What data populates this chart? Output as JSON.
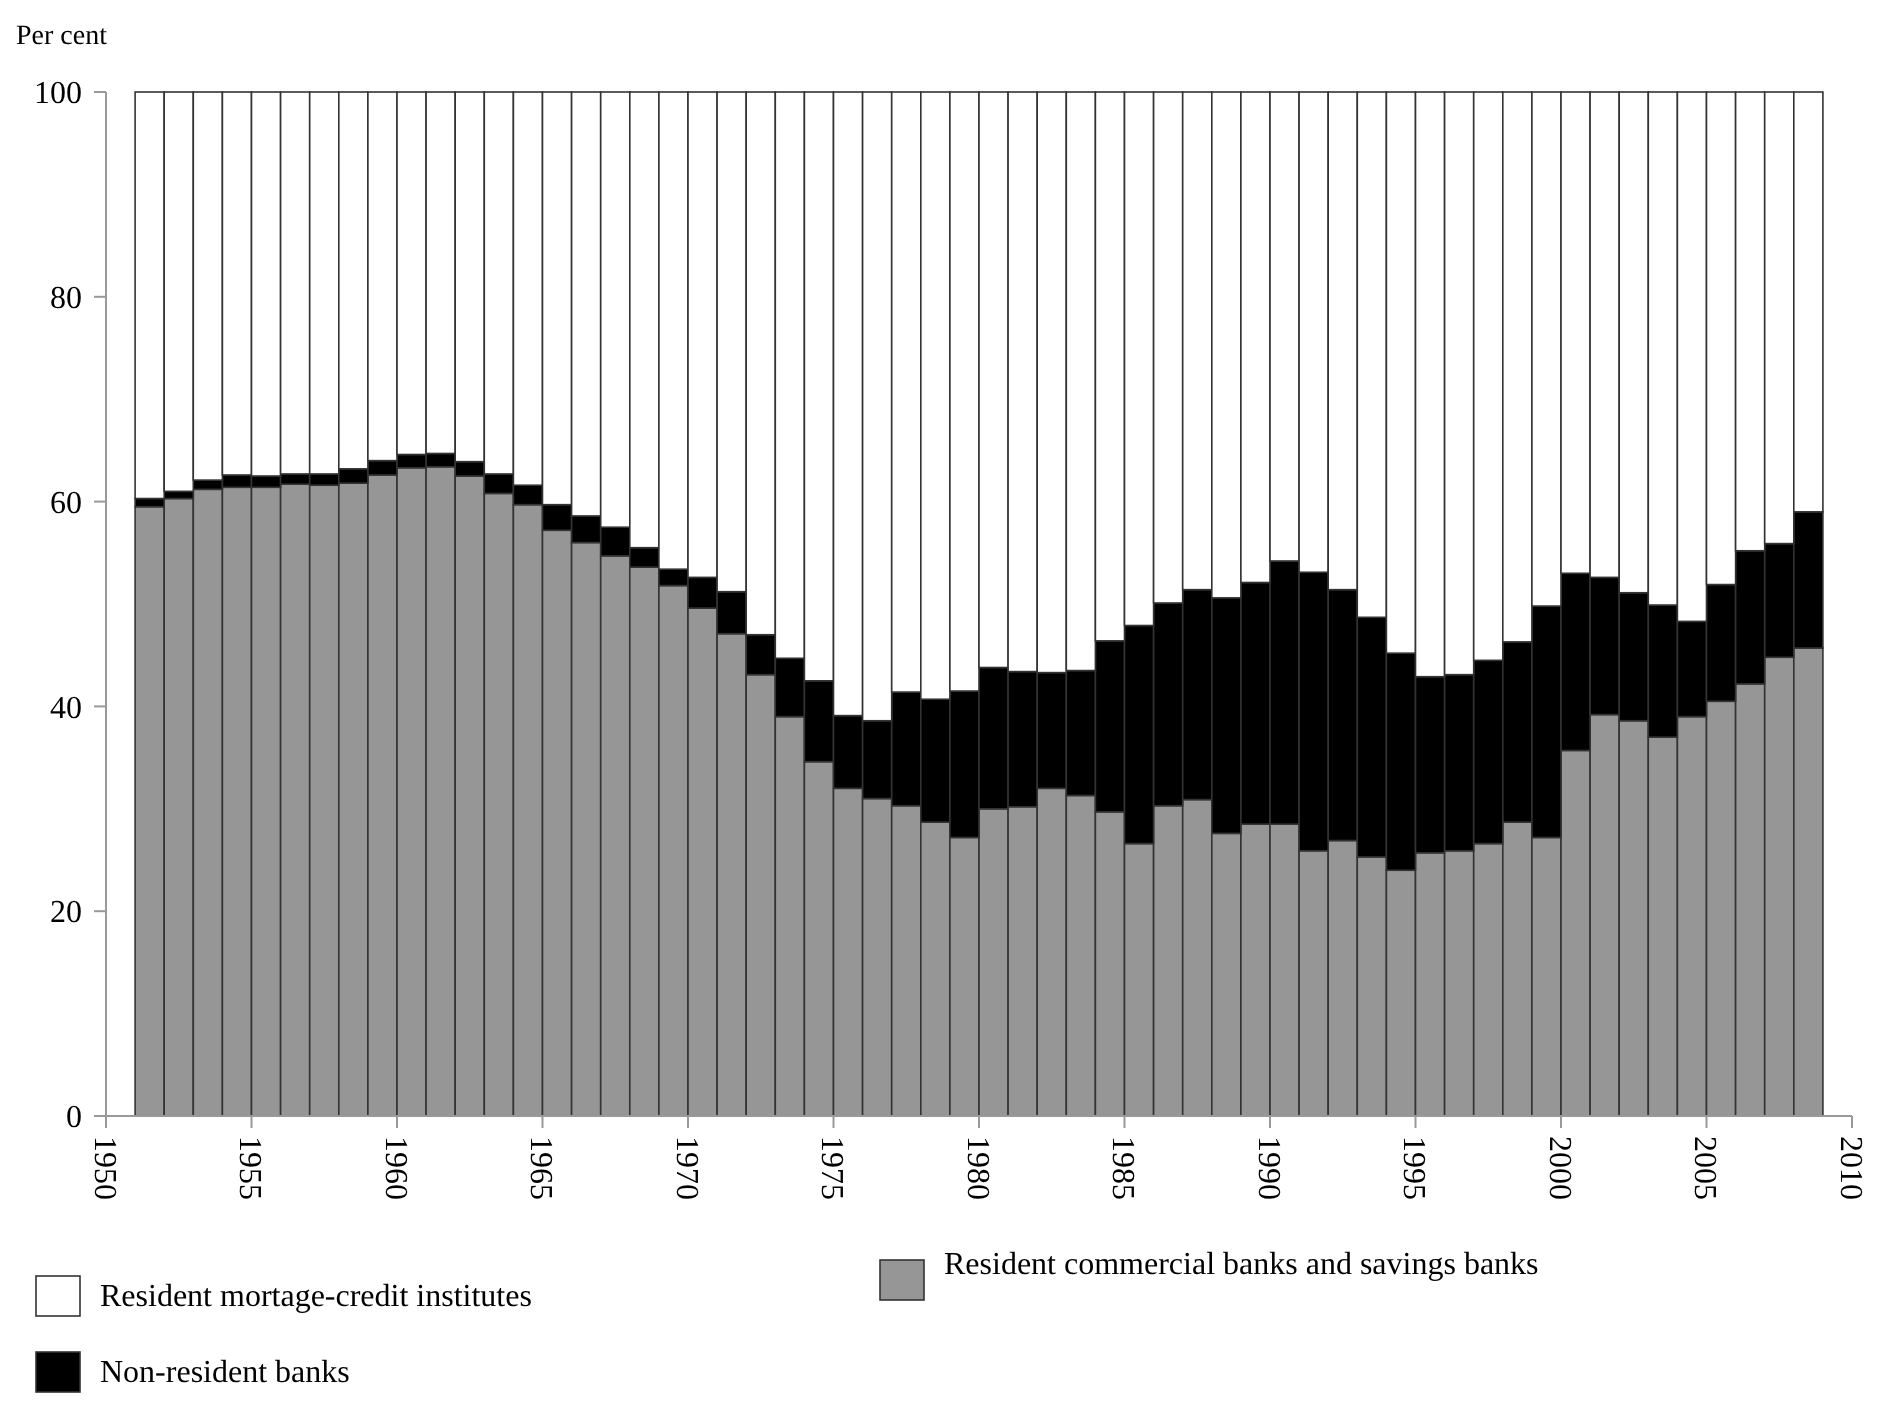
{
  "chart_data": {
    "type": "bar",
    "stacked": true,
    "ylabel": "Per cent",
    "x": [
      1951.5,
      1952.5,
      1953.5,
      1954.5,
      1955.5,
      1956.5,
      1957.5,
      1958.5,
      1959.5,
      1960.5,
      1961.5,
      1962.5,
      1963.5,
      1964.5,
      1965.5,
      1966.5,
      1967.5,
      1968.5,
      1969.5,
      1970.5,
      1971.5,
      1972.5,
      1973.5,
      1974.5,
      1975.5,
      1976.5,
      1977.5,
      1978.5,
      1979.5,
      1980.5,
      1981.5,
      1982.5,
      1983.5,
      1984.5,
      1985.5,
      1986.5,
      1987.5,
      1988.5,
      1989.5,
      1990.5,
      1991.5,
      1992.5,
      1993.5,
      1994.5,
      1995.5,
      1996.5,
      1997.5,
      1998.5,
      1999.5,
      2000.5,
      2001.5,
      2002.5,
      2003.5,
      2004.5,
      2005.5,
      2006.5,
      2007.5,
      2008.5
    ],
    "xlim": [
      1950,
      2010
    ],
    "xticks": [
      1950,
      1955,
      1960,
      1965,
      1970,
      1975,
      1980,
      1985,
      1990,
      1995,
      2000,
      2005,
      2010
    ],
    "ylim": [
      0,
      100
    ],
    "yticks": [
      0,
      20,
      40,
      60,
      80,
      100
    ],
    "grid": false,
    "legend": "bottom",
    "series": [
      {
        "name": "Resident commercial banks and savings banks",
        "color": "#969696",
        "values": [
          59.5,
          60.3,
          61.2,
          61.4,
          61.4,
          61.7,
          61.6,
          61.8,
          62.6,
          63.3,
          63.4,
          62.5,
          60.8,
          59.7,
          57.2,
          56.0,
          54.7,
          53.6,
          51.8,
          49.6,
          47.1,
          43.1,
          39.0,
          34.6,
          32.0,
          31.0,
          30.3,
          28.7,
          27.2,
          30.0,
          30.2,
          32.0,
          31.3,
          29.7,
          26.6,
          30.3,
          30.9,
          27.6,
          28.5,
          28.5,
          25.9,
          26.9,
          25.3,
          24.0,
          25.7,
          25.9,
          26.6,
          28.7,
          27.2,
          35.7,
          39.2,
          38.6,
          37.0,
          39.0,
          40.5,
          42.2,
          44.8,
          45.7
        ]
      },
      {
        "name": "Non-resident banks",
        "color": "#000000",
        "values": [
          0.8,
          0.7,
          0.9,
          1.2,
          1.1,
          1.0,
          1.1,
          1.4,
          1.4,
          1.3,
          1.3,
          1.4,
          1.9,
          1.9,
          2.5,
          2.6,
          2.8,
          1.9,
          1.6,
          3.0,
          4.1,
          3.9,
          5.7,
          7.9,
          7.1,
          7.6,
          11.1,
          12.0,
          14.3,
          13.8,
          13.2,
          11.3,
          12.2,
          16.7,
          21.3,
          19.8,
          20.5,
          23.0,
          23.6,
          25.7,
          27.2,
          24.5,
          23.4,
          21.2,
          17.2,
          17.2,
          17.9,
          17.6,
          22.6,
          17.3,
          13.4,
          12.5,
          12.9,
          9.3,
          11.4,
          13.0,
          11.1,
          13.3
        ]
      },
      {
        "name": "Resident mortage-credit institutes",
        "color": "#ffffff",
        "values": [
          39.7,
          39.0,
          37.9,
          37.4,
          37.5,
          37.3,
          37.3,
          36.8,
          36.0,
          35.4,
          35.3,
          36.1,
          37.3,
          38.4,
          40.3,
          41.4,
          42.5,
          44.5,
          46.6,
          47.4,
          48.8,
          53.0,
          55.3,
          57.5,
          60.9,
          61.4,
          58.6,
          59.3,
          58.5,
          56.2,
          56.6,
          56.7,
          56.5,
          53.6,
          52.1,
          49.9,
          48.6,
          49.4,
          47.9,
          45.8,
          46.9,
          48.6,
          51.3,
          54.8,
          57.1,
          56.9,
          55.5,
          53.7,
          50.2,
          47.0,
          47.4,
          48.9,
          50.1,
          51.7,
          48.1,
          44.8,
          44.1,
          41.0
        ]
      }
    ]
  }
}
